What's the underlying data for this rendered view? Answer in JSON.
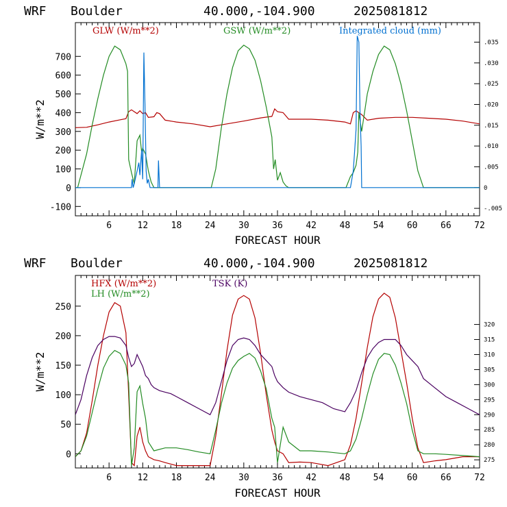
{
  "chart_data": [
    {
      "type": "line",
      "header": {
        "model": "WRF",
        "site": "Boulder",
        "coords": "40.000,-104.900",
        "init": "2025081812"
      },
      "xlabel": "FORECAST HOUR",
      "ylabel": "W/m**2",
      "xlim": [
        0,
        72
      ],
      "ylim": [
        -150,
        880
      ],
      "xticks": [
        "6",
        "12",
        "18",
        "24",
        "30",
        "36",
        "42",
        "48",
        "54",
        "60",
        "66",
        "72"
      ],
      "yticks": [
        "-100",
        "0",
        "100",
        "200",
        "300",
        "400",
        "500",
        "600",
        "700"
      ],
      "y2lim": [
        -0.0068,
        0.0397
      ],
      "y2ticks": [
        "-.005",
        "0",
        ".005",
        ".010",
        ".015",
        ".020",
        ".025",
        ".030",
        ".035"
      ],
      "grid": false,
      "series": [
        {
          "name": "GLW (W/m**2)",
          "color": "#b40000",
          "axis": "left",
          "x": [
            0,
            2,
            4,
            6,
            8,
            9,
            9.5,
            10,
            11,
            11.5,
            12,
            12.5,
            13,
            14,
            14.5,
            15,
            16,
            18,
            21,
            24,
            27,
            30,
            33,
            35,
            35.5,
            36,
            37,
            38,
            42,
            45,
            48,
            49,
            49.5,
            50,
            51,
            52,
            54,
            57,
            60,
            63,
            66,
            69,
            72
          ],
          "y": [
            320,
            322,
            335,
            350,
            362,
            368,
            405,
            415,
            395,
            410,
            395,
            400,
            375,
            378,
            400,
            395,
            360,
            350,
            340,
            325,
            340,
            355,
            372,
            380,
            420,
            405,
            400,
            365,
            365,
            360,
            350,
            340,
            400,
            410,
            390,
            360,
            370,
            375,
            375,
            370,
            365,
            355,
            340
          ]
        },
        {
          "name": "GSW (W/m**2)",
          "color": "#228b22",
          "axis": "left",
          "x": [
            0,
            0.4,
            2,
            3,
            4,
            5,
            6,
            7,
            8,
            9,
            9.3,
            9.5,
            10,
            10.5,
            11,
            11.5,
            11.8,
            12,
            12.5,
            13,
            13.5,
            14,
            24,
            24.2,
            25,
            26,
            27,
            28,
            29,
            30,
            31,
            32,
            33,
            34,
            35,
            35.3,
            35.6,
            36,
            36.5,
            37,
            37.5,
            38,
            48,
            48.2,
            49,
            49.5,
            50,
            50.3,
            50.5,
            51,
            52,
            53,
            54,
            55,
            56,
            57,
            58,
            59,
            60,
            61,
            62,
            62.2,
            72
          ],
          "y": [
            0,
            0,
            180,
            335,
            475,
            600,
            700,
            755,
            735,
            660,
            620,
            150,
            80,
            20,
            250,
            280,
            190,
            210,
            180,
            90,
            30,
            0,
            0,
            0,
            100,
            320,
            500,
            640,
            730,
            760,
            740,
            680,
            570,
            430,
            270,
            100,
            150,
            40,
            80,
            30,
            10,
            0,
            0,
            0,
            60,
            80,
            120,
            190,
            400,
            300,
            500,
            620,
            710,
            755,
            735,
            660,
            550,
            410,
            250,
            90,
            0,
            0,
            0
          ]
        },
        {
          "name": "Integrated cloud (mm)",
          "color": "#0070d0",
          "axis": "right",
          "x": [
            0,
            10,
            10.1,
            10.3,
            10.5,
            11,
            11.3,
            11.5,
            11.8,
            12,
            12.2,
            12.4,
            12.6,
            12.8,
            13,
            13.3,
            13.5,
            14.7,
            14.8,
            15,
            15.2,
            49,
            49.5,
            49.7,
            50,
            50.2,
            50.5,
            50.7,
            50.9,
            51,
            72
          ],
          "y": [
            0,
            0,
            0.002,
            0,
            0.001,
            0.004,
            0.006,
            0.003,
            0.009,
            0.002,
            0.0325,
            0.02,
            0.004,
            0.001,
            0.002,
            0,
            0,
            0,
            0.0065,
            0,
            0,
            0,
            0.004,
            0.008,
            0.014,
            0.0365,
            0.035,
            0.018,
            0.01,
            0,
            0
          ]
        }
      ]
    },
    {
      "type": "line",
      "header": {
        "model": "WRF",
        "site": "Boulder",
        "coords": "40.000,-104.900",
        "init": "2025081812"
      },
      "xlabel": "FORECAST HOUR",
      "ylabel": "W/m**2",
      "xlim": [
        0,
        72
      ],
      "ylim": [
        -24,
        302
      ],
      "xticks": [
        "6",
        "12",
        "18",
        "24",
        "30",
        "36",
        "42",
        "48",
        "54",
        "60",
        "66",
        "72"
      ],
      "yticks": [
        "0",
        "50",
        "100",
        "150",
        "200",
        "250"
      ],
      "y2lim": [
        272.3,
        336.3
      ],
      "y2ticks": [
        "275",
        "280",
        "285",
        "290",
        "295",
        "300",
        "305",
        "310",
        "315",
        "320"
      ],
      "grid": false,
      "series": [
        {
          "name": "HFX (W/m**2)",
          "color": "#b40000",
          "axis": "left",
          "x": [
            0,
            1,
            2,
            3,
            4,
            5,
            6,
            7,
            8,
            9,
            9.5,
            10,
            10.5,
            11,
            11.5,
            12,
            12.5,
            13,
            14,
            15,
            16,
            18,
            21,
            24,
            25,
            26,
            27,
            28,
            29,
            30,
            31,
            32,
            33,
            34,
            35,
            35.5,
            36,
            37,
            38,
            40,
            42,
            45,
            48,
            49,
            50,
            51,
            52,
            53,
            54,
            55,
            56,
            57,
            58,
            59,
            60,
            61,
            62,
            64,
            66,
            69,
            72
          ],
          "y": [
            -5,
            5,
            35,
            90,
            150,
            200,
            240,
            256,
            250,
            205,
            100,
            -15,
            -20,
            30,
            45,
            20,
            5,
            -5,
            -10,
            -12,
            -15,
            -20,
            -20,
            -20,
            30,
            100,
            175,
            235,
            262,
            268,
            262,
            230,
            170,
            100,
            40,
            20,
            5,
            0,
            -15,
            -14,
            -15,
            -20,
            -10,
            15,
            60,
            120,
            180,
            232,
            262,
            272,
            265,
            230,
            175,
            120,
            60,
            10,
            -15,
            -12,
            -10,
            -5,
            -5
          ]
        },
        {
          "name": "LH  (W/m**2)",
          "color": "#228b22",
          "axis": "left",
          "x": [
            0,
            1,
            2,
            3,
            4,
            5,
            6,
            7,
            8,
            9,
            9.5,
            10,
            10.5,
            11,
            11.5,
            12,
            12.5,
            13,
            14,
            16,
            18,
            20,
            22,
            24,
            25,
            26,
            27,
            28,
            29,
            30,
            31,
            32,
            33,
            34,
            35,
            35.5,
            36,
            37,
            38,
            40,
            42,
            45,
            48,
            49,
            50,
            51,
            52,
            53,
            54,
            55,
            56,
            57,
            58,
            59,
            60,
            61,
            62,
            64,
            66,
            69,
            72
          ],
          "y": [
            -5,
            5,
            30,
            70,
            110,
            145,
            165,
            175,
            170,
            150,
            120,
            -20,
            10,
            105,
            115,
            85,
            60,
            20,
            5,
            10,
            10,
            7,
            3,
            0,
            40,
            85,
            120,
            145,
            158,
            165,
            170,
            162,
            140,
            110,
            60,
            45,
            -15,
            45,
            20,
            5,
            5,
            3,
            0,
            5,
            25,
            60,
            100,
            135,
            160,
            170,
            168,
            150,
            120,
            85,
            40,
            5,
            0,
            0,
            -1,
            -3,
            -5
          ]
        },
        {
          "name": "TSK (K)",
          "color": "#4a0060",
          "axis": "right",
          "x": [
            0,
            1,
            2,
            3,
            4,
            5,
            6,
            7,
            8,
            9,
            9.5,
            10,
            10.5,
            11,
            11.5,
            12,
            12.5,
            13,
            13.5,
            14,
            15,
            16,
            17,
            18,
            20,
            22,
            24,
            25,
            26,
            27,
            28,
            29,
            30,
            31,
            32,
            33,
            34,
            35,
            35.5,
            36,
            37,
            38,
            40,
            42,
            44,
            46,
            48,
            49,
            50,
            51,
            52,
            53,
            54,
            55,
            56,
            57,
            58,
            59,
            60,
            61,
            62,
            64,
            66,
            68,
            70,
            72
          ],
          "y": [
            290,
            295,
            303,
            309,
            313,
            315,
            316,
            316,
            315.5,
            313,
            309,
            306,
            307,
            310,
            308,
            306,
            303,
            302,
            300,
            299,
            298,
            297.5,
            297,
            296,
            294,
            292,
            290,
            294,
            301,
            308,
            313,
            315,
            315.5,
            315,
            313,
            310,
            308,
            306,
            303,
            301,
            299,
            297.5,
            296,
            295,
            294,
            292,
            291,
            294,
            298,
            304,
            309,
            312,
            314,
            315,
            315,
            315,
            313,
            310,
            308,
            306,
            302,
            299,
            296,
            294,
            292,
            290
          ]
        }
      ]
    }
  ]
}
